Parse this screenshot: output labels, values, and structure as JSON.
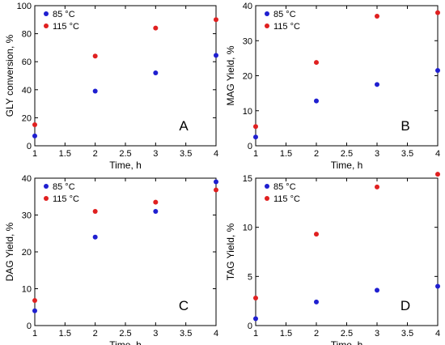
{
  "chart_data": [
    {
      "type": "scatter",
      "panel_label": "A",
      "xlabel": "Time, h",
      "ylabel": "GLY conversion, %",
      "xlim": [
        1,
        4
      ],
      "ylim": [
        0,
        100
      ],
      "x_ticks": [
        1,
        1.5,
        2,
        2.5,
        3,
        3.5,
        4
      ],
      "y_ticks": [
        0,
        20,
        40,
        60,
        80,
        100
      ],
      "legend_position": "top-left",
      "series": [
        {
          "name": "85 °C",
          "color": "#1f1fd0",
          "x": [
            1,
            2,
            3,
            4
          ],
          "y": [
            7,
            39,
            52,
            64.5
          ]
        },
        {
          "name": "115 °C",
          "color": "#e02020",
          "x": [
            1,
            2,
            3,
            4
          ],
          "y": [
            15,
            64,
            84,
            90
          ]
        }
      ]
    },
    {
      "type": "scatter",
      "panel_label": "B",
      "xlabel": "Time, h",
      "ylabel": "MAG Yield, %",
      "xlim": [
        1,
        4
      ],
      "ylim": [
        0,
        40
      ],
      "x_ticks": [
        1,
        1.5,
        2,
        2.5,
        3,
        3.5,
        4
      ],
      "y_ticks": [
        0,
        10,
        20,
        30,
        40
      ],
      "legend_position": "top-left",
      "series": [
        {
          "name": "85 °C",
          "color": "#1f1fd0",
          "x": [
            1,
            2,
            3,
            4
          ],
          "y": [
            2.5,
            12.8,
            17.5,
            21.5
          ]
        },
        {
          "name": "115 °C",
          "color": "#e02020",
          "x": [
            1,
            2,
            3,
            4
          ],
          "y": [
            5.5,
            23.8,
            37,
            38
          ]
        }
      ]
    },
    {
      "type": "scatter",
      "panel_label": "C",
      "xlabel": "Time, h",
      "ylabel": "DAG Yield, %",
      "xlim": [
        1,
        4
      ],
      "ylim": [
        0,
        40
      ],
      "x_ticks": [
        1,
        1.5,
        2,
        2.5,
        3,
        3.5,
        4
      ],
      "y_ticks": [
        0,
        10,
        20,
        30,
        40
      ],
      "legend_position": "top-left",
      "series": [
        {
          "name": "85 °C",
          "color": "#1f1fd0",
          "x": [
            1,
            2,
            3,
            4
          ],
          "y": [
            4,
            24,
            31,
            39
          ]
        },
        {
          "name": "115 °C",
          "color": "#e02020",
          "x": [
            1,
            2,
            3,
            4
          ],
          "y": [
            6.8,
            31,
            33.5,
            36.8
          ]
        }
      ]
    },
    {
      "type": "scatter",
      "panel_label": "D",
      "xlabel": "Time, h",
      "ylabel": "TAG Yield, %",
      "xlim": [
        1,
        4
      ],
      "ylim": [
        0,
        15
      ],
      "x_ticks": [
        1,
        1.5,
        2,
        2.5,
        3,
        3.5,
        4
      ],
      "y_ticks": [
        0,
        5,
        10,
        15
      ],
      "legend_position": "top-left",
      "series": [
        {
          "name": "85 °C",
          "color": "#1f1fd0",
          "x": [
            1,
            2,
            3,
            4
          ],
          "y": [
            0.7,
            2.4,
            3.6,
            4.0
          ]
        },
        {
          "name": "115 °C",
          "color": "#e02020",
          "x": [
            1,
            2,
            3,
            4
          ],
          "y": [
            2.8,
            9.3,
            14.1,
            15.4
          ]
        }
      ]
    }
  ]
}
